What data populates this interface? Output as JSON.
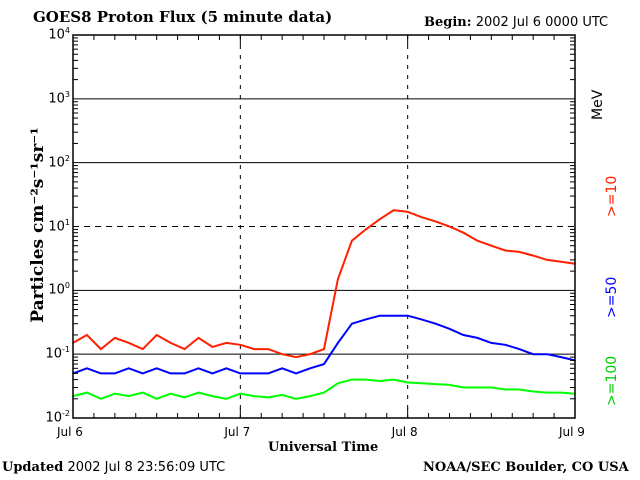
{
  "chart_data": {
    "type": "line",
    "title": "GOES8 Proton Flux (5 minute data)",
    "begin_label": "Begin:",
    "begin_value": "2002 Jul 6 0000 UTC",
    "xlabel": "Universal Time",
    "ylabel": "Particles cm⁻²s⁻¹sr⁻¹",
    "yscale": "log",
    "ylim": [
      0.01,
      10000
    ],
    "y_ticks": [
      {
        "base": "10",
        "exp": "4"
      },
      {
        "base": "10",
        "exp": "3"
      },
      {
        "base": "10",
        "exp": "2"
      },
      {
        "base": "10",
        "exp": "1"
      },
      {
        "base": "10",
        "exp": "0"
      },
      {
        "base": "10",
        "exp": "-1"
      },
      {
        "base": "10",
        "exp": "-2"
      }
    ],
    "x_tick_labels": [
      "Jul 6",
      "Jul 7",
      "Jul 8",
      "Jul 9"
    ],
    "x_unit": "hours since 2002 Jul 6 0000 UTC",
    "xlim": [
      0,
      72
    ],
    "x": [
      0,
      2,
      4,
      6,
      8,
      10,
      12,
      14,
      16,
      18,
      20,
      22,
      24,
      26,
      28,
      30,
      32,
      34,
      36,
      38,
      40,
      42,
      44,
      46,
      48,
      50,
      52,
      54,
      56,
      58,
      60,
      62,
      64,
      66,
      68,
      70,
      72
    ],
    "series": [
      {
        "name": ">=10",
        "color": "#ff2000",
        "values": [
          0.15,
          0.2,
          0.12,
          0.18,
          0.15,
          0.12,
          0.2,
          0.15,
          0.12,
          0.18,
          0.13,
          0.15,
          0.14,
          0.12,
          0.12,
          0.1,
          0.09,
          0.1,
          0.12,
          1.5,
          6,
          9,
          13,
          18,
          17,
          14,
          12,
          10,
          8,
          6,
          5,
          4.2,
          4,
          3.5,
          3,
          2.8,
          2.6
        ]
      },
      {
        "name": ">=50",
        "color": "#0000ff",
        "values": [
          0.05,
          0.06,
          0.05,
          0.05,
          0.06,
          0.05,
          0.06,
          0.05,
          0.05,
          0.06,
          0.05,
          0.06,
          0.05,
          0.05,
          0.05,
          0.06,
          0.05,
          0.06,
          0.07,
          0.15,
          0.3,
          0.35,
          0.4,
          0.4,
          0.4,
          0.35,
          0.3,
          0.25,
          0.2,
          0.18,
          0.15,
          0.14,
          0.12,
          0.1,
          0.1,
          0.09,
          0.08
        ]
      },
      {
        "name": ">=100",
        "color": "#00ff00",
        "values": [
          0.022,
          0.025,
          0.02,
          0.024,
          0.022,
          0.025,
          0.02,
          0.024,
          0.021,
          0.025,
          0.022,
          0.02,
          0.024,
          0.022,
          0.021,
          0.023,
          0.02,
          0.022,
          0.025,
          0.035,
          0.04,
          0.04,
          0.038,
          0.04,
          0.036,
          0.035,
          0.034,
          0.033,
          0.03,
          0.03,
          0.03,
          0.028,
          0.028,
          0.026,
          0.025,
          0.025,
          0.024
        ]
      }
    ],
    "legend_unit": "MeV",
    "legend_placement": "right",
    "grid": {
      "solid": [
        1000,
        100,
        1,
        0.1
      ],
      "dashed": [
        10
      ],
      "vertical_dashed": [
        "Jul 7",
        "Jul 8"
      ]
    }
  },
  "footer": {
    "updated_label": "Updated",
    "updated_value": "2002 Jul  8 23:56:09 UTC",
    "source": "NOAA/SEC Boulder, CO USA"
  }
}
